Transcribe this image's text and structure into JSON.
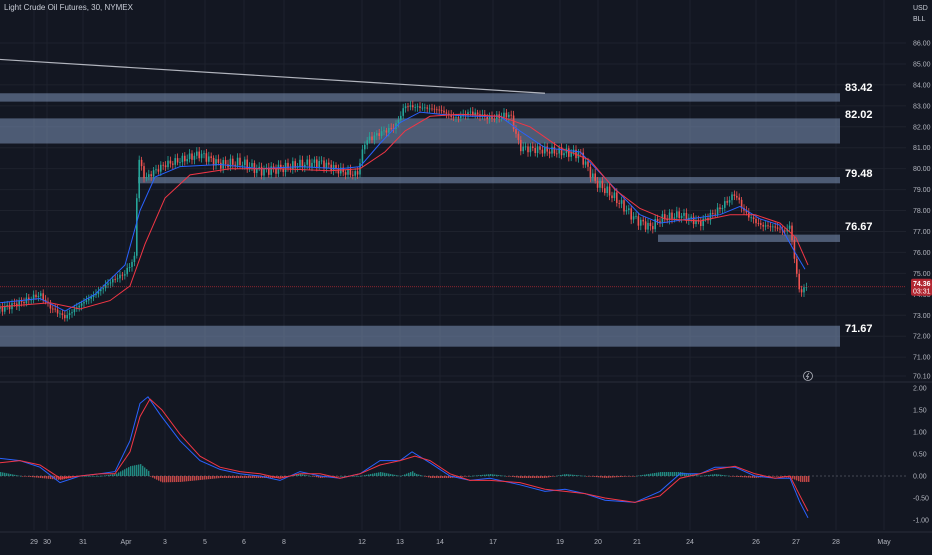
{
  "header": {
    "title": "Light Crude Oil Futures, 30, NYMEX",
    "currency": "USD",
    "unit": "BLL"
  },
  "colors": {
    "background": "#131722",
    "zone": "#7d93b8",
    "ema_fast": "#2962ff",
    "ema_slow": "#f23645",
    "up": "#26a69a",
    "down": "#ef5350",
    "trendline": "#b2b5be",
    "price_tag": "#b22833"
  },
  "price_tag": {
    "price": "74.36",
    "countdown": "03:31"
  },
  "chart_data": [
    {
      "type": "line",
      "name": "price",
      "x_labels": [
        "29",
        "30",
        "31",
        "Apr",
        "3",
        "5",
        "6",
        "8",
        "12",
        "13",
        "14",
        "17",
        "19",
        "20",
        "21",
        "24",
        "26",
        "27",
        "28",
        "May"
      ],
      "y_ticks": [
        "86.00",
        "85.00",
        "84.00",
        "83.00",
        "82.00",
        "81.00",
        "80.00",
        "79.00",
        "78.00",
        "77.00",
        "76.00",
        "75.00",
        "74.00",
        "73.00",
        "72.00",
        "71.00",
        "70.10"
      ],
      "ylim": [
        70.1,
        86.5
      ],
      "levels": [
        {
          "label": "83.42",
          "low": 83.2,
          "high": 83.6
        },
        {
          "label": "82.02",
          "low": 81.2,
          "high": 82.4
        },
        {
          "label": "79.48",
          "low": 79.3,
          "high": 79.6
        },
        {
          "label": "76.67",
          "low": 76.5,
          "high": 76.85
        },
        {
          "label": "71.67",
          "low": 71.5,
          "high": 72.5
        }
      ],
      "trendline": {
        "from": [
          0,
          84.5
        ],
        "to": [
          545,
          83.6
        ]
      },
      "series": [
        {
          "values": [
            [
              0,
              73.3
            ],
            [
              20,
              73.6
            ],
            [
              40,
              74.0
            ],
            [
              50,
              73.4
            ],
            [
              65,
              72.9
            ],
            [
              80,
              73.5
            ],
            [
              95,
              74.0
            ],
            [
              110,
              74.6
            ],
            [
              125,
              75.0
            ],
            [
              135,
              75.8
            ],
            [
              138,
              80.6
            ],
            [
              145,
              79.5
            ],
            [
              152,
              79.8
            ],
            [
              165,
              80.2
            ],
            [
              180,
              80.4
            ],
            [
              200,
              80.7
            ],
            [
              220,
              80.2
            ],
            [
              240,
              80.3
            ],
            [
              260,
              79.9
            ],
            [
              280,
              80.0
            ],
            [
              300,
              80.2
            ],
            [
              320,
              80.3
            ],
            [
              340,
              79.9
            ],
            [
              357,
              79.7
            ],
            [
              365,
              81.3
            ],
            [
              380,
              81.7
            ],
            [
              395,
              82.0
            ],
            [
              405,
              83.0
            ],
            [
              425,
              82.9
            ],
            [
              440,
              82.8
            ],
            [
              455,
              82.4
            ],
            [
              470,
              82.7
            ],
            [
              490,
              82.4
            ],
            [
              510,
              82.6
            ],
            [
              520,
              81.0
            ],
            [
              540,
              80.9
            ],
            [
              560,
              80.8
            ],
            [
              580,
              80.7
            ],
            [
              595,
              79.4
            ],
            [
              615,
              78.6
            ],
            [
              635,
              77.6
            ],
            [
              650,
              77.2
            ],
            [
              660,
              77.6
            ],
            [
              680,
              77.8
            ],
            [
              700,
              77.4
            ],
            [
              720,
              78.1
            ],
            [
              735,
              78.8
            ],
            [
              745,
              77.9
            ],
            [
              760,
              77.3
            ],
            [
              775,
              77.2
            ],
            [
              785,
              77.0
            ],
            [
              790,
              77.3
            ],
            [
              795,
              75.5
            ],
            [
              800,
              74.0
            ],
            [
              804,
              74.3
            ],
            [
              808,
              74.4
            ]
          ]
        },
        {
          "values": [
            [
              0,
              73.6
            ],
            [
              40,
              73.8
            ],
            [
              65,
              73.2
            ],
            [
              95,
              74.0
            ],
            [
              125,
              75.4
            ],
            [
              140,
              78.0
            ],
            [
              155,
              79.6
            ],
            [
              180,
              80.1
            ],
            [
              220,
              80.2
            ],
            [
              260,
              80.0
            ],
            [
              300,
              80.1
            ],
            [
              340,
              80.0
            ],
            [
              360,
              80.1
            ],
            [
              380,
              81.2
            ],
            [
              400,
              82.2
            ],
            [
              420,
              82.7
            ],
            [
              440,
              82.6
            ],
            [
              470,
              82.5
            ],
            [
              500,
              82.5
            ],
            [
              520,
              81.8
            ],
            [
              545,
              81.0
            ],
            [
              580,
              80.8
            ],
            [
              600,
              79.8
            ],
            [
              620,
              78.8
            ],
            [
              640,
              77.8
            ],
            [
              660,
              77.4
            ],
            [
              690,
              77.6
            ],
            [
              720,
              77.8
            ],
            [
              740,
              78.2
            ],
            [
              760,
              77.6
            ],
            [
              780,
              77.3
            ],
            [
              795,
              76.0
            ],
            [
              805,
              75.2
            ]
          ]
        },
        {
          "values": [
            [
              0,
              73.4
            ],
            [
              50,
              73.6
            ],
            [
              80,
              73.3
            ],
            [
              110,
              73.7
            ],
            [
              130,
              74.4
            ],
            [
              145,
              76.4
            ],
            [
              165,
              78.6
            ],
            [
              190,
              79.7
            ],
            [
              230,
              80.0
            ],
            [
              280,
              80.0
            ],
            [
              330,
              79.9
            ],
            [
              360,
              80.0
            ],
            [
              385,
              80.8
            ],
            [
              405,
              81.8
            ],
            [
              430,
              82.5
            ],
            [
              460,
              82.6
            ],
            [
              500,
              82.5
            ],
            [
              530,
              82.0
            ],
            [
              560,
              81.0
            ],
            [
              590,
              80.4
            ],
            [
              615,
              79.0
            ],
            [
              640,
              78.1
            ],
            [
              665,
              77.6
            ],
            [
              700,
              77.5
            ],
            [
              730,
              77.8
            ],
            [
              755,
              77.8
            ],
            [
              780,
              77.4
            ],
            [
              796,
              76.7
            ],
            [
              808,
              75.4
            ]
          ]
        }
      ]
    },
    {
      "type": "line",
      "name": "oscillator",
      "y_ticks": [
        "2.00",
        "1.50",
        "1.00",
        "0.50",
        "0.00",
        "-0.50",
        "-1.00"
      ],
      "ylim": [
        -1.2,
        2.1
      ],
      "series": [
        {
          "values": [
            [
              0,
              0.4
            ],
            [
              20,
              0.35
            ],
            [
              40,
              0.2
            ],
            [
              60,
              -0.15
            ],
            [
              80,
              0.0
            ],
            [
              100,
              0.05
            ],
            [
              115,
              0.1
            ],
            [
              130,
              0.8
            ],
            [
              140,
              1.65
            ],
            [
              148,
              1.8
            ],
            [
              160,
              1.4
            ],
            [
              180,
              0.8
            ],
            [
              200,
              0.35
            ],
            [
              220,
              0.15
            ],
            [
              240,
              0.05
            ],
            [
              260,
              0.0
            ],
            [
              280,
              -0.1
            ],
            [
              300,
              0.1
            ],
            [
              320,
              0.0
            ],
            [
              340,
              -0.05
            ],
            [
              360,
              0.05
            ],
            [
              380,
              0.35
            ],
            [
              400,
              0.35
            ],
            [
              412,
              0.55
            ],
            [
              430,
              0.3
            ],
            [
              450,
              0.0
            ],
            [
              470,
              -0.1
            ],
            [
              490,
              -0.05
            ],
            [
              520,
              -0.2
            ],
            [
              545,
              -0.35
            ],
            [
              565,
              -0.3
            ],
            [
              585,
              -0.4
            ],
            [
              605,
              -0.55
            ],
            [
              635,
              -0.6
            ],
            [
              660,
              -0.35
            ],
            [
              680,
              0.05
            ],
            [
              700,
              0.05
            ],
            [
              715,
              0.2
            ],
            [
              735,
              0.2
            ],
            [
              755,
              0.0
            ],
            [
              775,
              -0.05
            ],
            [
              790,
              -0.05
            ],
            [
              800,
              -0.6
            ],
            [
              808,
              -0.95
            ]
          ]
        },
        {
          "values": [
            [
              0,
              0.3
            ],
            [
              20,
              0.35
            ],
            [
              40,
              0.25
            ],
            [
              60,
              -0.05
            ],
            [
              80,
              0.0
            ],
            [
              100,
              0.05
            ],
            [
              115,
              0.05
            ],
            [
              130,
              0.55
            ],
            [
              140,
              1.35
            ],
            [
              150,
              1.75
            ],
            [
              162,
              1.5
            ],
            [
              180,
              0.95
            ],
            [
              200,
              0.45
            ],
            [
              220,
              0.2
            ],
            [
              240,
              0.1
            ],
            [
              260,
              0.05
            ],
            [
              280,
              -0.05
            ],
            [
              300,
              0.05
            ],
            [
              320,
              0.05
            ],
            [
              340,
              -0.05
            ],
            [
              360,
              0.05
            ],
            [
              380,
              0.25
            ],
            [
              400,
              0.35
            ],
            [
              415,
              0.45
            ],
            [
              430,
              0.35
            ],
            [
              450,
              0.05
            ],
            [
              470,
              -0.1
            ],
            [
              490,
              -0.1
            ],
            [
              520,
              -0.15
            ],
            [
              545,
              -0.3
            ],
            [
              565,
              -0.35
            ],
            [
              585,
              -0.4
            ],
            [
              605,
              -0.5
            ],
            [
              635,
              -0.6
            ],
            [
              660,
              -0.45
            ],
            [
              680,
              -0.05
            ],
            [
              700,
              0.05
            ],
            [
              715,
              0.15
            ],
            [
              735,
              0.22
            ],
            [
              755,
              0.05
            ],
            [
              775,
              -0.05
            ],
            [
              790,
              0.0
            ],
            [
              800,
              -0.45
            ],
            [
              808,
              -0.8
            ]
          ]
        }
      ]
    }
  ]
}
